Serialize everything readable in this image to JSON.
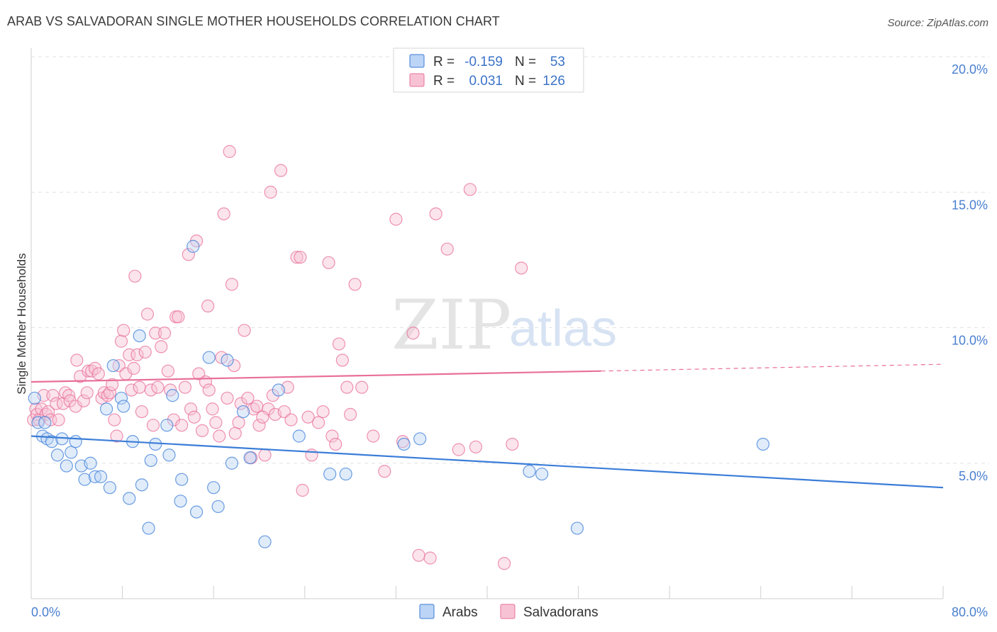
{
  "title": "ARAB VS SALVADORAN SINGLE MOTHER HOUSEHOLDS CORRELATION CHART",
  "source": "Source: ZipAtlas.com",
  "watermark": {
    "part1": "ZIP",
    "part2": "atlas"
  },
  "colors": {
    "arabs": "#3b7dd8",
    "arabs_fill": "#bcd4f5",
    "salvadorans": "#e86f9a",
    "salvadorans_fill": "#f7c3d4",
    "tick_text": "#4a7fd0",
    "grid": "#e2e2e2"
  },
  "legend": {
    "r_label": "R =",
    "n_label": "N =",
    "rows": [
      {
        "series": "Arabs",
        "r": "-0.159",
        "n": "53"
      },
      {
        "series": "Salvadorans",
        "r": "0.031",
        "n": "126"
      }
    ]
  },
  "chart_data": {
    "type": "scatter",
    "title": "ARAB VS SALVADORAN SINGLE MOTHER HOUSEHOLDS CORRELATION CHART",
    "xlabel": "",
    "ylabel": "Single Mother Households",
    "xlim": [
      0,
      80
    ],
    "ylim": [
      0,
      20
    ],
    "x_tick_labels": [
      "0.0%",
      "80.0%"
    ],
    "y_ticks": [
      5,
      10,
      15,
      20
    ],
    "y_tick_labels": [
      "5.0%",
      "10.0%",
      "15.0%",
      "20.0%"
    ],
    "grid": "horizontal dashed",
    "legend_position": "top-center",
    "series": [
      {
        "name": "Arabs",
        "r": -0.159,
        "n": 53,
        "trend": {
          "x": [
            0,
            80
          ],
          "y": [
            6.0,
            4.1
          ]
        },
        "points": [
          [
            0.3,
            7.4
          ],
          [
            0.6,
            6.5
          ],
          [
            1.0,
            6.0
          ],
          [
            1.2,
            6.5
          ],
          [
            1.4,
            5.9
          ],
          [
            1.8,
            5.8
          ],
          [
            2.3,
            5.3
          ],
          [
            2.7,
            5.9
          ],
          [
            3.1,
            4.9
          ],
          [
            3.5,
            5.4
          ],
          [
            3.9,
            5.8
          ],
          [
            4.4,
            4.9
          ],
          [
            4.7,
            4.4
          ],
          [
            5.2,
            5.0
          ],
          [
            5.6,
            4.5
          ],
          [
            6.1,
            4.5
          ],
          [
            6.6,
            7.0
          ],
          [
            6.9,
            4.1
          ],
          [
            7.2,
            8.6
          ],
          [
            7.9,
            7.4
          ],
          [
            8.1,
            7.1
          ],
          [
            8.6,
            3.7
          ],
          [
            8.9,
            5.8
          ],
          [
            9.5,
            9.7
          ],
          [
            9.7,
            4.2
          ],
          [
            10.3,
            2.6
          ],
          [
            10.5,
            5.1
          ],
          [
            10.9,
            5.7
          ],
          [
            11.9,
            6.4
          ],
          [
            12.1,
            5.3
          ],
          [
            12.4,
            7.5
          ],
          [
            13.2,
            4.4
          ],
          [
            13.1,
            3.6
          ],
          [
            14.2,
            13.0
          ],
          [
            14.5,
            3.2
          ],
          [
            15.6,
            8.9
          ],
          [
            16.0,
            4.1
          ],
          [
            16.4,
            3.4
          ],
          [
            17.2,
            8.8
          ],
          [
            17.6,
            5.0
          ],
          [
            18.6,
            6.9
          ],
          [
            19.2,
            5.2
          ],
          [
            20.5,
            2.1
          ],
          [
            21.7,
            7.7
          ],
          [
            23.5,
            6.0
          ],
          [
            26.2,
            4.6
          ],
          [
            27.6,
            4.6
          ],
          [
            32.7,
            5.7
          ],
          [
            34.1,
            5.9
          ],
          [
            43.7,
            4.7
          ],
          [
            44.8,
            4.6
          ],
          [
            47.9,
            2.6
          ],
          [
            64.2,
            5.7
          ]
        ]
      },
      {
        "name": "Salvadorans",
        "r": 0.031,
        "n": 126,
        "trend": {
          "x": [
            0,
            50
          ],
          "y": [
            8.0,
            8.4
          ]
        },
        "trend_dashed": {
          "x": [
            50,
            80
          ],
          "y": [
            8.4,
            8.65
          ]
        },
        "points": [
          [
            0.2,
            6.6
          ],
          [
            0.4,
            7.0
          ],
          [
            0.5,
            6.8
          ],
          [
            0.7,
            6.6
          ],
          [
            0.9,
            7.0
          ],
          [
            1.1,
            7.5
          ],
          [
            1.3,
            6.8
          ],
          [
            1.5,
            6.9
          ],
          [
            1.7,
            6.6
          ],
          [
            1.9,
            7.5
          ],
          [
            2.2,
            7.2
          ],
          [
            2.4,
            6.6
          ],
          [
            2.8,
            7.2
          ],
          [
            3.0,
            7.6
          ],
          [
            3.3,
            7.5
          ],
          [
            3.4,
            7.3
          ],
          [
            3.9,
            7.1
          ],
          [
            4.0,
            8.8
          ],
          [
            4.3,
            8.2
          ],
          [
            4.6,
            7.3
          ],
          [
            4.9,
            7.6
          ],
          [
            5.0,
            8.4
          ],
          [
            5.3,
            8.4
          ],
          [
            5.6,
            8.5
          ],
          [
            5.9,
            8.3
          ],
          [
            6.2,
            7.4
          ],
          [
            6.4,
            7.6
          ],
          [
            6.7,
            7.5
          ],
          [
            6.9,
            7.6
          ],
          [
            7.1,
            7.9
          ],
          [
            7.3,
            6.6
          ],
          [
            7.5,
            6.0
          ],
          [
            7.7,
            8.6
          ],
          [
            7.9,
            9.5
          ],
          [
            8.1,
            9.9
          ],
          [
            8.3,
            8.3
          ],
          [
            8.6,
            9.0
          ],
          [
            8.8,
            7.7
          ],
          [
            9.0,
            8.5
          ],
          [
            9.1,
            11.9
          ],
          [
            9.3,
            9.0
          ],
          [
            9.5,
            7.8
          ],
          [
            9.7,
            6.9
          ],
          [
            10.0,
            9.1
          ],
          [
            10.2,
            10.5
          ],
          [
            10.5,
            7.7
          ],
          [
            10.7,
            6.4
          ],
          [
            10.9,
            9.8
          ],
          [
            11.1,
            7.8
          ],
          [
            11.4,
            9.3
          ],
          [
            11.7,
            9.8
          ],
          [
            12.0,
            8.4
          ],
          [
            12.2,
            7.7
          ],
          [
            12.5,
            6.6
          ],
          [
            12.7,
            10.4
          ],
          [
            12.9,
            10.4
          ],
          [
            13.2,
            6.4
          ],
          [
            13.5,
            7.8
          ],
          [
            13.8,
            12.7
          ],
          [
            14.0,
            7.0
          ],
          [
            14.3,
            6.7
          ],
          [
            14.5,
            13.2
          ],
          [
            14.7,
            8.3
          ],
          [
            15.0,
            6.2
          ],
          [
            15.3,
            8.0
          ],
          [
            15.5,
            10.8
          ],
          [
            15.9,
            7.0
          ],
          [
            16.2,
            6.5
          ],
          [
            16.5,
            6.0
          ],
          [
            16.7,
            8.9
          ],
          [
            16.9,
            14.2
          ],
          [
            17.2,
            7.4
          ],
          [
            17.4,
            16.5
          ],
          [
            17.6,
            11.6
          ],
          [
            17.9,
            6.1
          ],
          [
            18.2,
            6.5
          ],
          [
            18.4,
            7.2
          ],
          [
            18.7,
            9.9
          ],
          [
            19.0,
            7.4
          ],
          [
            19.3,
            5.2
          ],
          [
            19.5,
            7.0
          ],
          [
            19.8,
            7.1
          ],
          [
            20.0,
            6.4
          ],
          [
            20.5,
            5.3
          ],
          [
            20.8,
            7.0
          ],
          [
            21.0,
            15.0
          ],
          [
            21.2,
            7.5
          ],
          [
            21.4,
            6.8
          ],
          [
            21.9,
            15.8
          ],
          [
            22.2,
            6.9
          ],
          [
            22.5,
            7.8
          ],
          [
            22.8,
            6.6
          ],
          [
            23.3,
            12.6
          ],
          [
            23.6,
            12.6
          ],
          [
            23.8,
            4.0
          ],
          [
            24.3,
            6.7
          ],
          [
            24.6,
            5.3
          ],
          [
            25.2,
            6.5
          ],
          [
            25.6,
            6.9
          ],
          [
            26.1,
            12.4
          ],
          [
            26.4,
            6.0
          ],
          [
            26.7,
            5.7
          ],
          [
            27.0,
            9.4
          ],
          [
            27.3,
            8.8
          ],
          [
            27.7,
            7.8
          ],
          [
            28.0,
            6.8
          ],
          [
            28.4,
            11.6
          ],
          [
            29.0,
            7.8
          ],
          [
            30.0,
            6.0
          ],
          [
            31.0,
            4.7
          ],
          [
            32.0,
            14.0
          ],
          [
            32.6,
            5.8
          ],
          [
            33.5,
            9.8
          ],
          [
            34.0,
            1.6
          ],
          [
            35.0,
            1.5
          ],
          [
            35.5,
            14.2
          ],
          [
            36.5,
            12.9
          ],
          [
            37.5,
            5.5
          ],
          [
            38.5,
            15.1
          ],
          [
            39.0,
            5.6
          ],
          [
            41.5,
            1.3
          ],
          [
            42.2,
            5.7
          ],
          [
            43.0,
            12.2
          ],
          [
            20.3,
            6.7
          ],
          [
            17.8,
            8.6
          ],
          [
            15.6,
            7.7
          ]
        ]
      }
    ]
  }
}
